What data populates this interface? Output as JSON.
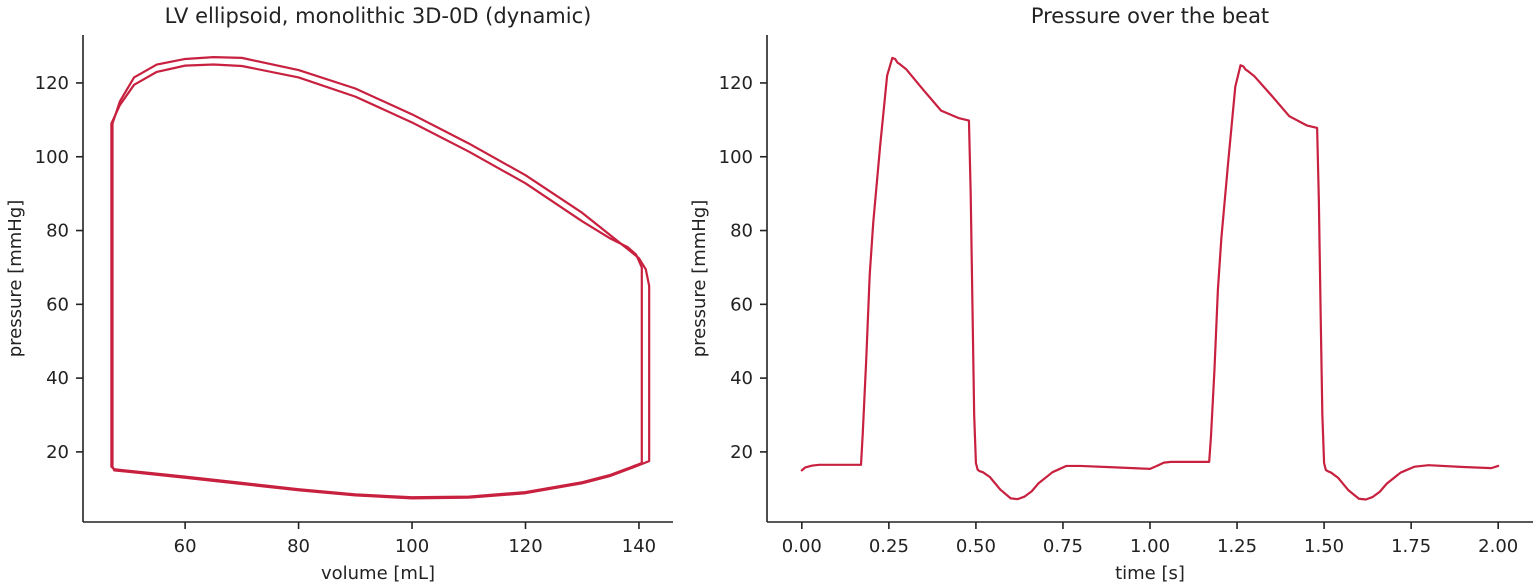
{
  "chart_data": [
    {
      "type": "line",
      "title": "LV ellipsoid, monolithic 3D-0D (dynamic)",
      "xlabel": "volume [mL]",
      "ylabel": "pressure [mmHg]",
      "xlim": [
        42,
        146
      ],
      "ylim": [
        1,
        133
      ],
      "xticks": [
        60,
        80,
        100,
        120,
        140
      ],
      "yticks": [
        20,
        40,
        60,
        80,
        100,
        120
      ],
      "grid": false,
      "legend": "none",
      "color": "#c8203f",
      "series": [
        {
          "x": [
            141.8,
            141.8,
            141.2,
            140,
            138,
            130,
            120,
            110,
            100,
            90,
            80,
            70,
            65,
            60,
            55,
            51,
            48.5,
            47.2,
            47.2,
            47.2,
            47.5,
            50,
            60,
            70,
            80,
            90,
            100,
            110,
            120,
            130,
            135,
            139,
            141.8
          ],
          "y": [
            17.5,
            65,
            69.5,
            72.5,
            75,
            84.8,
            95,
            103.6,
            111.5,
            118.5,
            123.5,
            126.8,
            127,
            126.5,
            125,
            121.5,
            115,
            109,
            60,
            16,
            15,
            14.6,
            13,
            11.3,
            9.6,
            8.2,
            7.4,
            7.6,
            8.8,
            11.5,
            13.5,
            15.8,
            17.5
          ]
        },
        {
          "x": [
            140.5,
            140.5,
            139.5,
            138,
            135,
            130,
            120,
            110,
            100,
            90,
            80,
            70,
            65,
            60,
            55,
            51,
            48.5,
            47,
            47,
            47,
            47.5,
            50,
            60,
            70,
            80,
            90,
            100,
            110,
            120,
            130,
            135,
            138.5,
            140.5
          ],
          "y": [
            17,
            70,
            73.5,
            75.5,
            77.8,
            82.5,
            92.8,
            101.4,
            109.3,
            116.3,
            121.5,
            124.6,
            125,
            124.7,
            123,
            119.5,
            114,
            109,
            60,
            16,
            15.3,
            14.9,
            13.3,
            11.6,
            9.9,
            8.5,
            7.7,
            7.9,
            9.1,
            11.8,
            13.8,
            15.8,
            17
          ]
        }
      ]
    },
    {
      "type": "line",
      "title": "Pressure over the beat",
      "xlabel": "time [s]",
      "ylabel": "pressure [mmHg]",
      "xlim": [
        -0.1,
        2.1
      ],
      "ylim": [
        1,
        133
      ],
      "xticks": [
        "0.00",
        "0.25",
        "0.50",
        "0.75",
        "1.00",
        "1.25",
        "1.50",
        "1.75",
        "2.00"
      ],
      "yticks": [
        20,
        40,
        60,
        80,
        100,
        120
      ],
      "grid": false,
      "legend": "none",
      "color": "#c8203f",
      "series": [
        {
          "x": [
            0,
            0.01,
            0.03,
            0.05,
            0.1,
            0.17,
            0.175,
            0.185,
            0.195,
            0.205,
            0.225,
            0.245,
            0.26,
            0.268,
            0.275,
            0.28,
            0.3,
            0.35,
            0.4,
            0.45,
            0.48,
            0.485,
            0.49,
            0.495,
            0.5,
            0.505,
            0.51,
            0.52,
            0.54,
            0.57,
            0.6,
            0.62,
            0.64,
            0.66,
            0.68,
            0.72,
            0.76,
            0.8,
            0.9,
            1.0,
            1.02,
            1.04,
            1.06,
            1.1,
            1.17,
            1.175,
            1.185,
            1.195,
            1.205,
            1.225,
            1.245,
            1.26,
            1.268,
            1.275,
            1.28,
            1.3,
            1.35,
            1.4,
            1.45,
            1.48,
            1.485,
            1.49,
            1.495,
            1.5,
            1.505,
            1.51,
            1.52,
            1.54,
            1.57,
            1.6,
            1.62,
            1.64,
            1.66,
            1.68,
            1.72,
            1.76,
            1.8,
            1.9,
            1.98,
            2.0
          ],
          "y": [
            15,
            15.8,
            16.3,
            16.5,
            16.5,
            16.5,
            25,
            45,
            68,
            82,
            103,
            122,
            126.8,
            126.5,
            125.5,
            125.2,
            123.7,
            118,
            112.5,
            110.5,
            109.8,
            90,
            60,
            30,
            17,
            15.2,
            14.8,
            14.5,
            13.2,
            9.8,
            7.4,
            7.2,
            7.9,
            9.3,
            11.5,
            14.5,
            16.2,
            16.2,
            15.8,
            15.4,
            16.2,
            17.1,
            17.3,
            17.3,
            17.3,
            24,
            42,
            64,
            78,
            99,
            119,
            124.8,
            124.5,
            123.6,
            123.3,
            121.8,
            116.5,
            111,
            108.5,
            107.8,
            88,
            58,
            30,
            17,
            15.1,
            14.8,
            14.4,
            13,
            9.6,
            7.3,
            7.1,
            7.8,
            9.2,
            11.4,
            14.4,
            16,
            16.4,
            15.9,
            15.6,
            16.2
          ]
        }
      ]
    }
  ]
}
